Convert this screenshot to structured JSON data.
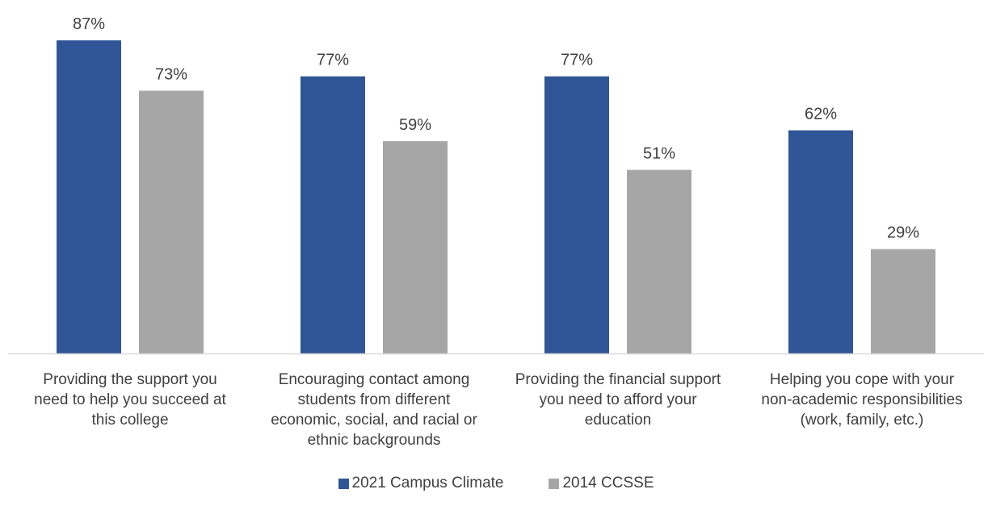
{
  "chart_data": {
    "type": "bar",
    "title": "",
    "xlabel": "",
    "ylabel": "",
    "ylim": [
      0,
      100
    ],
    "grid": false,
    "legend_position": "bottom",
    "value_suffix": "%",
    "categories": [
      [
        "Providing the support you",
        "need to help you succeed at",
        "this college"
      ],
      [
        "Encouraging contact among",
        "students from different",
        "economic, social, and racial or",
        "ethnic backgrounds"
      ],
      [
        "Providing the financial support",
        "you need to afford your",
        "education"
      ],
      [
        "Helping you cope with your",
        "non-academic responsibilities",
        "(work, family, etc.)"
      ]
    ],
    "series": [
      {
        "name": "2021 Campus Climate",
        "color": "#2f5597",
        "values": [
          87,
          77,
          77,
          62
        ]
      },
      {
        "name": "2014 CCSSE",
        "color": "#a6a6a6",
        "values": [
          73,
          59,
          51,
          29
        ]
      }
    ]
  }
}
